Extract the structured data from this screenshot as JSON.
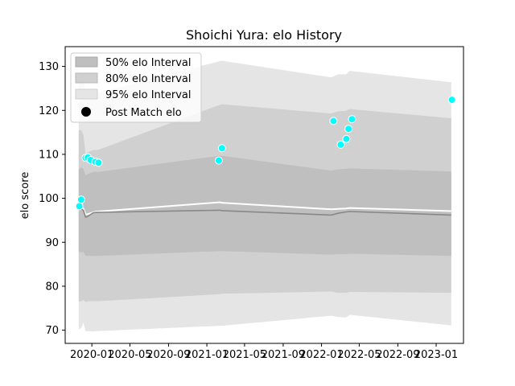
{
  "chart_data": {
    "type": "area",
    "title": "Shoichi Yura: elo History",
    "xlabel": "",
    "ylabel": "elo score",
    "xlim": [
      "2019-10-08",
      "2023-03-29"
    ],
    "ylim": [
      67,
      134.5
    ],
    "x_ticks": [
      "2020-01",
      "2020-05",
      "2020-09",
      "2021-01",
      "2021-05",
      "2021-09",
      "2022-01",
      "2022-05",
      "2022-09",
      "2023-01"
    ],
    "y_ticks": [
      70,
      80,
      90,
      100,
      110,
      120,
      130
    ],
    "legend_position": "top-left",
    "legend": [
      "50% elo Interval",
      "80% elo Interval",
      "95% elo Interval",
      "Post Match elo"
    ],
    "colors": {
      "band95": "#e5e5e5",
      "band80": "#d0d0d0",
      "band50": "#bfbfbf",
      "mean_line": "#ffffff",
      "median_line": "#888888",
      "points": "#00ffff",
      "point_edge": "#ffffff"
    },
    "x": [
      "2019-11-20",
      "2019-11-28",
      "2019-12-05",
      "2019-12-12",
      "2019-12-19",
      "2020-01-05",
      "2020-01-15",
      "2020-01-20",
      "2021-02-12",
      "2021-02-17",
      "2022-02-01",
      "2022-02-23",
      "2022-03-20",
      "2022-04-01",
      "2023-02-18"
    ],
    "series": [
      {
        "name": "95% elo Interval",
        "lower": [
          70.2,
          70.5,
          71.7,
          69.8,
          69.8,
          69.7,
          69.8,
          69.8,
          71.0,
          71.0,
          73.3,
          73.0,
          72.9,
          73.5,
          71.1
        ],
        "upper": [
          129.4,
          128.0,
          127.5,
          123.0,
          123.5,
          123.5,
          124.0,
          124.0,
          131.2,
          131.3,
          127.5,
          128.2,
          128.2,
          129.0,
          126.4
        ]
      },
      {
        "name": "80% elo Interval",
        "lower": [
          76.5,
          76.6,
          76.9,
          76.4,
          76.6,
          76.6,
          76.6,
          76.6,
          78.2,
          78.3,
          78.8,
          78.5,
          78.5,
          78.7,
          78.5
        ],
        "upper": [
          115.5,
          115.5,
          114.5,
          110.0,
          110.5,
          111.0,
          111.0,
          111.0,
          121.3,
          121.4,
          119.3,
          119.8,
          119.9,
          120.3,
          118.2
        ]
      },
      {
        "name": "50% elo Interval",
        "lower": [
          87.8,
          87.7,
          87.8,
          86.9,
          87.0,
          86.9,
          86.9,
          86.9,
          88.0,
          88.0,
          87.2,
          87.3,
          87.3,
          87.4,
          86.9
        ],
        "upper": [
          106.5,
          107.0,
          106.7,
          105.2,
          105.5,
          106.0,
          106.0,
          106.0,
          109.7,
          109.7,
          106.3,
          106.6,
          106.7,
          106.8,
          106.1
        ]
      },
      {
        "name": "mean",
        "values": [
          97.8,
          98.0,
          97.7,
          96.3,
          96.4,
          96.8,
          97.0,
          97.0,
          99.1,
          99.0,
          97.5,
          97.6,
          97.7,
          97.8,
          97.1
        ]
      },
      {
        "name": "median",
        "values": [
          97.5,
          97.6,
          97.3,
          95.7,
          95.9,
          96.7,
          96.8,
          96.8,
          97.3,
          97.2,
          96.2,
          96.6,
          96.9,
          97.0,
          96.2
        ]
      }
    ],
    "points": {
      "name": "Post Match elo",
      "x": [
        "2019-11-22",
        "2019-11-28",
        "2019-12-12",
        "2019-12-19",
        "2019-12-28",
        "2020-01-12",
        "2020-01-22",
        "2021-02-08",
        "2021-02-18",
        "2022-02-08",
        "2022-03-03",
        "2022-03-21",
        "2022-03-28",
        "2022-04-08",
        "2023-02-20"
      ],
      "y": [
        98.2,
        99.7,
        109.2,
        109.3,
        108.7,
        108.3,
        108.1,
        108.6,
        111.4,
        117.6,
        112.2,
        113.5,
        115.8,
        118.0,
        122.4
      ]
    }
  }
}
